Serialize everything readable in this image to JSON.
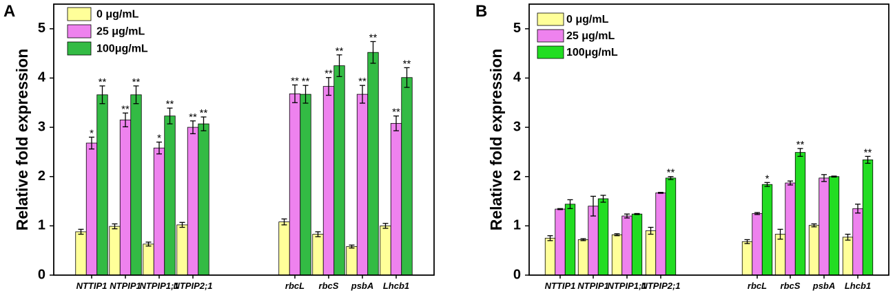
{
  "chart_data": [
    {
      "panel": "A",
      "type": "bar",
      "title": "",
      "xlabel": "",
      "ylabel": "Relative fold expression",
      "ylim": [
        0,
        5.5
      ],
      "yticks": [
        0,
        1,
        2,
        3,
        4,
        5
      ],
      "categories": [
        "NTTIP1",
        "NTPIP1",
        "NTPIP1;1",
        "NTPIP2;1",
        "rbcL",
        "rbcS",
        "psbA",
        "Lhcb1"
      ],
      "series": [
        {
          "name": "0  μg/mL",
          "color": "#ffff99",
          "values": [
            0.88,
            0.99,
            0.63,
            1.02,
            1.08,
            0.83,
            0.58,
            1.0
          ],
          "errors": [
            0.05,
            0.05,
            0.04,
            0.05,
            0.06,
            0.05,
            0.03,
            0.05
          ],
          "significance": [
            "",
            "",
            "",
            "",
            "",
            "",
            "",
            ""
          ]
        },
        {
          "name": "25 μg/mL",
          "color": "#ee82ee",
          "values": [
            2.68,
            3.15,
            2.58,
            3.0,
            3.68,
            3.83,
            3.67,
            3.08
          ],
          "errors": [
            0.12,
            0.14,
            0.12,
            0.13,
            0.18,
            0.18,
            0.18,
            0.15
          ],
          "significance": [
            "*",
            "**",
            "*",
            "**",
            "**",
            "**",
            "**",
            "**"
          ]
        },
        {
          "name": "100μg/mL",
          "color": "#33bb44",
          "values": [
            3.66,
            3.66,
            3.23,
            3.07,
            3.67,
            4.25,
            4.52,
            4.01
          ],
          "errors": [
            0.18,
            0.18,
            0.16,
            0.14,
            0.18,
            0.22,
            0.22,
            0.2
          ],
          "significance": [
            "**",
            "**",
            "**",
            "**",
            "**",
            "**",
            "**",
            "**"
          ]
        }
      ],
      "legend": "top-left"
    },
    {
      "panel": "B",
      "type": "bar",
      "title": "",
      "xlabel": "",
      "ylabel": "Relative fold expression",
      "ylim": [
        0,
        5.5
      ],
      "yticks": [
        0,
        1,
        2,
        3,
        4,
        5
      ],
      "categories": [
        "NTTIP1",
        "NTPIP1",
        "NTPIP1;1",
        "NTPIP2;1",
        "rbcL",
        "rbcS",
        "psbA",
        "Lhcb1"
      ],
      "series": [
        {
          "name": "0  μg/mL",
          "color": "#ffff99",
          "values": [
            0.75,
            0.72,
            0.82,
            0.9,
            0.68,
            0.83,
            1.01,
            0.77
          ],
          "errors": [
            0.05,
            0.02,
            0.02,
            0.07,
            0.04,
            0.1,
            0.03,
            0.06
          ],
          "significance": [
            "",
            "",
            "",
            "",
            "",
            "",
            "",
            ""
          ]
        },
        {
          "name": "25 μg/mL",
          "color": "#ee82ee",
          "values": [
            1.34,
            1.4,
            1.2,
            1.67,
            1.25,
            1.87,
            1.97,
            1.35
          ],
          "errors": [
            0.01,
            0.2,
            0.04,
            0.01,
            0.02,
            0.04,
            0.07,
            0.09
          ],
          "significance": [
            "",
            "",
            "",
            "",
            "",
            "",
            "",
            ""
          ]
        },
        {
          "name": "100μg/mL",
          "color": "#22dd22",
          "values": [
            1.44,
            1.55,
            1.24,
            1.97,
            1.84,
            2.49,
            2.0,
            2.34
          ],
          "errors": [
            0.09,
            0.07,
            0.01,
            0.03,
            0.04,
            0.08,
            0.01,
            0.07
          ],
          "significance": [
            "",
            "",
            "",
            "**",
            "*",
            "**",
            "",
            "**"
          ]
        }
      ],
      "legend": "top-left"
    }
  ]
}
